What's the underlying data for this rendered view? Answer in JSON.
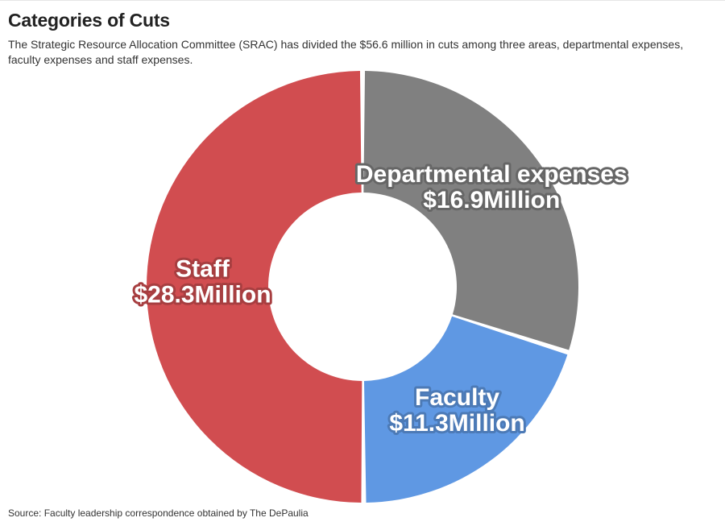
{
  "header": {
    "title": "Categories of Cuts",
    "subtitle": "The Strategic Resource Allocation Committee (SRAC) has divided the $56.6 million in cuts among three areas, departmental expenses, faculty expenses and staff expenses."
  },
  "footer": {
    "source": "Source: Faculty leadership correspondence obtained by The DePaulia"
  },
  "chart_data": {
    "type": "pie",
    "variant": "donut",
    "start": "12 o'clock",
    "direction": "clockwise",
    "total_value": 56.6,
    "unit": "Million",
    "slices": [
      {
        "name": "Departmental expenses",
        "value": 16.9,
        "value_label": "$16.9Million",
        "color": "#808080"
      },
      {
        "name": "Faculty",
        "value": 11.3,
        "value_label": "$11.3Million",
        "color": "#5f98e3"
      },
      {
        "name": "Staff",
        "value": 28.3,
        "value_label": "$28.3Million",
        "color": "#d14d50"
      }
    ],
    "legend": "none",
    "labels": "on slices"
  }
}
